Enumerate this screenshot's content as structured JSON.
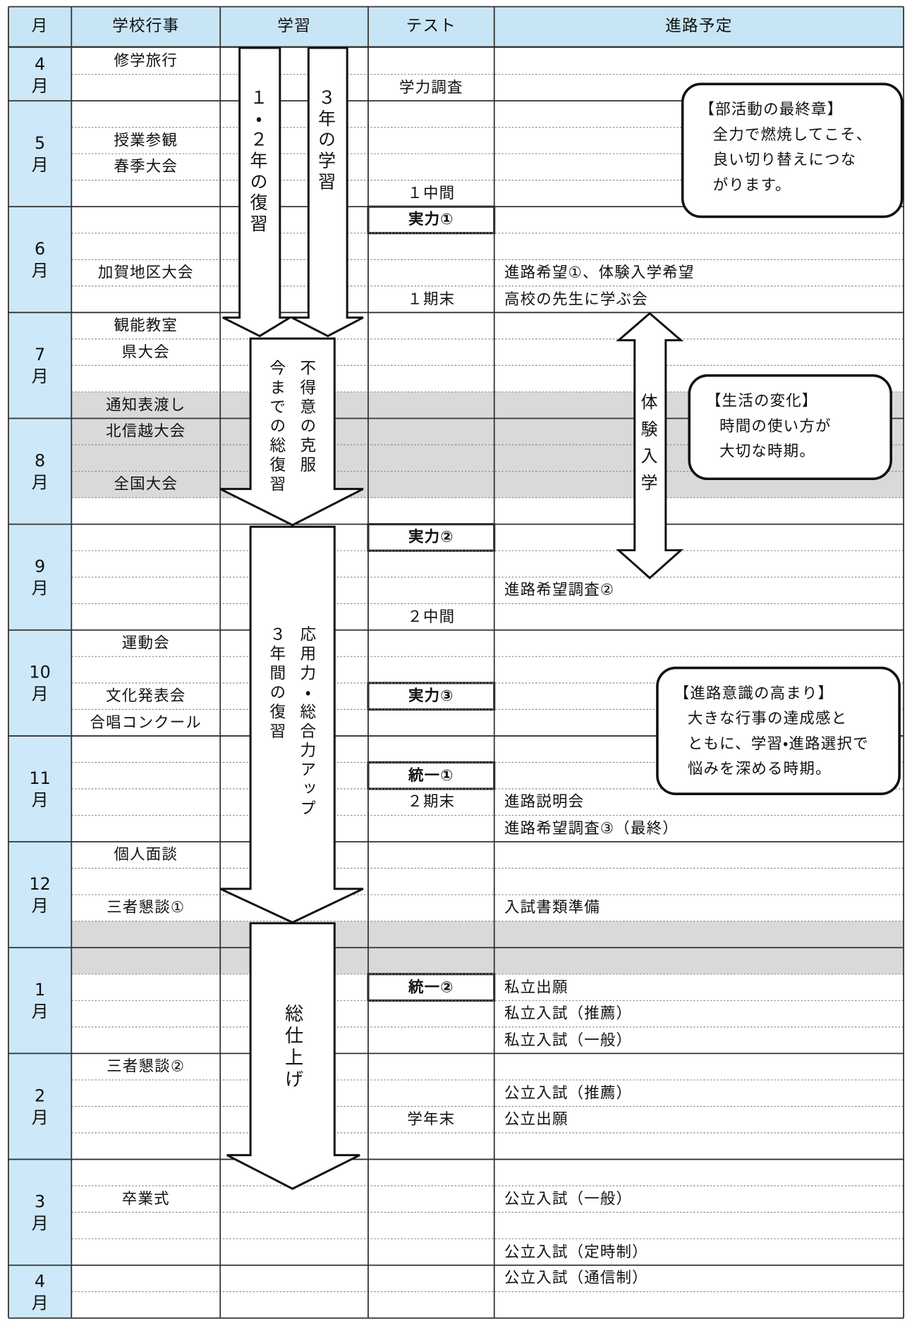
{
  "header": [
    "月",
    "学校行事",
    "学習",
    "テスト",
    "進路予定"
  ],
  "months": [
    {
      "label": "4月",
      "rows": [
        {
          "event": "修学旅行"
        },
        {
          "test": "学力調査"
        }
      ]
    },
    {
      "label": "5月",
      "rows": [
        {},
        {
          "event": "授業参観"
        },
        {
          "event": "春季大会"
        },
        {
          "test": "１中間"
        }
      ]
    },
    {
      "label": "6月",
      "rows": [
        {
          "test": "実力①",
          "test_boxed": true
        },
        {},
        {
          "event": "加賀地区大会",
          "career": "進路希望①、体験入学希望"
        },
        {
          "test": "１期末",
          "career": "高校の先生に学ぶ会"
        }
      ]
    },
    {
      "label": "7月",
      "rows": [
        {
          "event": "観能教室"
        },
        {
          "event": "県大会"
        },
        {},
        {
          "event": "通知表渡し",
          "shaded": true
        }
      ]
    },
    {
      "label": "8月",
      "rows": [
        {
          "event": "北信越大会",
          "shaded": true
        },
        {
          "shaded": true
        },
        {
          "event": "全国大会",
          "shaded": true
        },
        {}
      ]
    },
    {
      "label": "9月",
      "rows": [
        {
          "test": "実力②",
          "test_boxed": true
        },
        {},
        {
          "career": "進路希望調査②"
        },
        {
          "test": "２中間"
        }
      ]
    },
    {
      "label": "10月",
      "rows": [
        {
          "event": "運動会"
        },
        {},
        {
          "event": "文化発表会",
          "test": "実力③",
          "test_boxed": true
        },
        {
          "event": "合唱コンクール"
        }
      ]
    },
    {
      "label": "11月",
      "rows": [
        {},
        {
          "test": "統一①",
          "test_boxed": true
        },
        {
          "test": "２期末",
          "career": "進路説明会"
        },
        {
          "career": "進路希望調査③（最終）"
        }
      ]
    },
    {
      "label": "12月",
      "rows": [
        {
          "event": "個人面談"
        },
        {},
        {
          "event": "三者懇談①",
          "career": "入試書類準備"
        },
        {
          "shaded": true
        }
      ]
    },
    {
      "label": "1月",
      "rows": [
        {
          "shaded": true
        },
        {
          "test": "統一②",
          "test_boxed": true,
          "career": "私立出願"
        },
        {
          "career": "私立入試（推薦）"
        },
        {
          "career": "私立入試（一般）"
        }
      ]
    },
    {
      "label": "2月",
      "rows": [
        {
          "event": "三者懇談②"
        },
        {
          "career": "公立入試（推薦）"
        },
        {
          "test": "学年末",
          "career": "公立出願"
        },
        {}
      ]
    },
    {
      "label": "3月",
      "rows": [
        {},
        {
          "event": "卒業式",
          "career": "公立入試（一般）"
        },
        {},
        {
          "career": "公立入試（定時制）"
        }
      ]
    },
    {
      "label": "4月",
      "rows": [
        {
          "career": "公立入試（通信制）"
        },
        {}
      ]
    }
  ],
  "study_arrows": [
    {
      "lines": [
        "１・２年の復習"
      ]
    },
    {
      "lines": [
        "３年の学習"
      ]
    },
    {
      "lines": [
        "不得意の克服",
        "今までの総復習"
      ]
    },
    {
      "lines": [
        "応用力・総合力アップ",
        "３年間の復習"
      ]
    },
    {
      "lines": [
        "総仕上げ"
      ]
    }
  ],
  "career_arrow": "体験入学",
  "notes": [
    {
      "title": "【部活動の最終章】",
      "lines": [
        "全力で燃焼してこそ、",
        "良い切り替えにつな",
        "がります。"
      ]
    },
    {
      "title": "【生活の変化】",
      "lines": [
        "時間の使い方が",
        "大切な時期。"
      ]
    },
    {
      "title": "【進路意識の高まり】",
      "lines": [
        "大きな行事の達成感と",
        "ともに、学習・進路選択で",
        "悩みを深める時期。"
      ]
    }
  ]
}
